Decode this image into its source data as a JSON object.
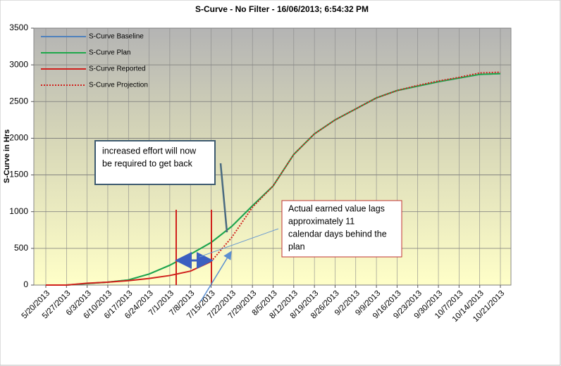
{
  "chart_data": {
    "type": "line",
    "title": "S-Curve - No Filter - 16/06/2013;  6:54:32 PM",
    "y_label": "S-Curve in Hrs",
    "categories": [
      "5/20/2013",
      "5/27/2013",
      "6/3/2013",
      "6/10/2013",
      "6/17/2013",
      "6/24/2013",
      "7/1/2013",
      "7/8/2013",
      "7/15/2013",
      "7/22/2013",
      "7/29/2013",
      "8/5/2013",
      "8/12/2013",
      "8/19/2013",
      "8/26/2013",
      "9/2/2013",
      "9/9/2013",
      "9/16/2013",
      "9/23/2013",
      "9/30/2013",
      "10/7/2013",
      "10/14/2013",
      "10/21/2013"
    ],
    "series": [
      {
        "name": "S-Curve Baseline",
        "color": "#4f81bd",
        "linestyle": "solid",
        "values": [
          0,
          0,
          20,
          40,
          70,
          150,
          270,
          420,
          580,
          800,
          1080,
          1350,
          1780,
          2060,
          2250,
          2400,
          2550,
          2650,
          2710,
          2770,
          2820,
          2870,
          2880
        ]
      },
      {
        "name": "S-Curve Plan",
        "color": "#1ea84a",
        "linestyle": "solid",
        "values": [
          0,
          0,
          20,
          40,
          70,
          150,
          270,
          420,
          580,
          800,
          1080,
          1350,
          1780,
          2060,
          2250,
          2400,
          2550,
          2650,
          2710,
          2770,
          2820,
          2870,
          2880
        ]
      },
      {
        "name": "S-Curve Reported",
        "color": "#d0201c",
        "linestyle": "solid",
        "values": [
          0,
          0,
          25,
          40,
          60,
          90,
          130,
          190,
          320,
          null,
          null,
          null,
          null,
          null,
          null,
          null,
          null,
          null,
          null,
          null,
          null,
          null,
          null
        ]
      },
      {
        "name": "S-Curve Projection",
        "color": "#d0201c",
        "linestyle": "dotted",
        "values": [
          null,
          null,
          null,
          null,
          null,
          null,
          null,
          null,
          320,
          650,
          1060,
          1350,
          1780,
          2060,
          2250,
          2400,
          2550,
          2650,
          2720,
          2780,
          2830,
          2890,
          2900
        ]
      }
    ],
    "ylim": [
      0,
      3500
    ],
    "yticks": [
      0,
      500,
      1000,
      1500,
      2000,
      2500,
      3000,
      3500
    ],
    "grid": true,
    "legend": "upper left",
    "annotations": [
      {
        "lines": [
          "increased effort will now",
          "be  required to get back"
        ]
      },
      {
        "lines": [
          "Actual earned value lags",
          "approximately  11",
          "calendar days behind the",
          "plan"
        ]
      }
    ]
  }
}
